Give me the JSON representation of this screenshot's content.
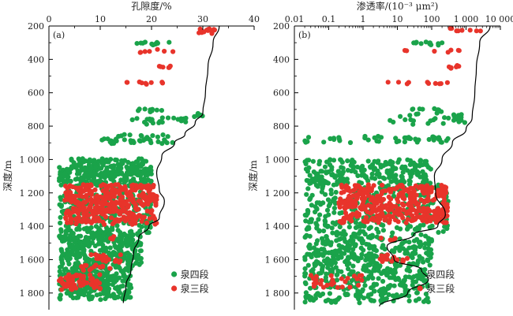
{
  "chart_data": [
    {
      "panel_label": "(a)",
      "type": "scatter",
      "title": "",
      "xlabel": "孔隙度/%",
      "ylabel": "深度/m",
      "x_scale": "linear",
      "xlim": [
        0,
        40
      ],
      "ylim": [
        200,
        1900
      ],
      "x_ticks": [
        0,
        10,
        20,
        30,
        40
      ],
      "x_tick_labels": [
        "0",
        "10",
        "20",
        "30",
        "40"
      ],
      "y_ticks": [
        200,
        400,
        600,
        800,
        1000,
        1200,
        1400,
        1600,
        1800
      ],
      "y_tick_labels": [
        "200",
        "400",
        "600",
        "800",
        "1 000",
        "1 200",
        "1 400",
        "1 600",
        "1 800"
      ],
      "legend_position": "bottom-right",
      "series": [
        {
          "name": "泉四段",
          "color": "#1aa34a",
          "bands": [
            {
              "y": [
                295,
                315
              ],
              "x": [
                16,
                24
              ],
              "n": 12
            },
            {
              "y": [
                695,
                715
              ],
              "x": [
                17,
                22
              ],
              "n": 10
            },
            {
              "y": [
                720,
                745
              ],
              "x": [
                27,
                30
              ],
              "n": 6
            },
            {
              "y": [
                750,
                790
              ],
              "x": [
                15,
                27
              ],
              "n": 22
            },
            {
              "y": [
                850,
                905
              ],
              "x": [
                10,
                25
              ],
              "n": 40
            },
            {
              "y": [
                995,
                1040
              ],
              "x": [
                4,
                19
              ],
              "n": 60
            },
            {
              "y": [
                1040,
                1160
              ],
              "x": [
                2,
                20
              ],
              "n": 230
            },
            {
              "y": [
                1160,
                1440
              ],
              "x": [
                2,
                20
              ],
              "n": 260
            },
            {
              "y": [
                1440,
                1640
              ],
              "x": [
                2,
                18
              ],
              "n": 300
            },
            {
              "y": [
                1640,
                1840
              ],
              "x": [
                2,
                16
              ],
              "n": 260
            }
          ]
        },
        {
          "name": "泉三段",
          "color": "#e8342b",
          "bands": [
            {
              "y": [
                210,
                245
              ],
              "x": [
                29,
                32.5
              ],
              "n": 14
            },
            {
              "y": [
                340,
                360
              ],
              "x": [
                17,
                27
              ],
              "n": 7
            },
            {
              "y": [
                435,
                450
              ],
              "x": [
                21,
                25
              ],
              "n": 6
            },
            {
              "y": [
                535,
                550
              ],
              "x": [
                15,
                25
              ],
              "n": 9
            },
            {
              "y": [
                1150,
                1390
              ],
              "x": [
                3,
                21
              ],
              "n": 360
            },
            {
              "y": [
                1460,
                1480
              ],
              "x": [
                12,
                13
              ],
              "n": 3
            },
            {
              "y": [
                1570,
                1620
              ],
              "x": [
                8,
                14
              ],
              "n": 20
            },
            {
              "y": [
                1630,
                1670
              ],
              "x": [
                6,
                12
              ],
              "n": 14
            },
            {
              "y": [
                1690,
                1780
              ],
              "x": [
                2,
                10
              ],
              "n": 60
            }
          ]
        }
      ],
      "envelope": {
        "points": [
          [
            33.2,
            200
          ],
          [
            32.0,
            300
          ],
          [
            31.0,
            450
          ],
          [
            30.5,
            600
          ],
          [
            30.0,
            720
          ],
          [
            28.5,
            780
          ],
          [
            26.5,
            850
          ],
          [
            24.5,
            900
          ],
          [
            22.0,
            980
          ],
          [
            21.0,
            1080
          ],
          [
            21.5,
            1180
          ],
          [
            22.5,
            1250
          ],
          [
            21.5,
            1350
          ],
          [
            19.5,
            1400
          ],
          [
            17.5,
            1470
          ],
          [
            16.5,
            1560
          ],
          [
            16.0,
            1660
          ],
          [
            15.0,
            1760
          ],
          [
            14.5,
            1860
          ]
        ]
      }
    },
    {
      "panel_label": "(b)",
      "type": "scatter",
      "title": "",
      "xlabel": "渗透率/(10⁻³ μm²)",
      "ylabel": "深度/m",
      "x_scale": "log",
      "xlim": [
        0.01,
        10000
      ],
      "ylim": [
        200,
        1900
      ],
      "x_ticks": [
        0.01,
        0.1,
        1,
        10,
        100,
        1000,
        10000
      ],
      "x_tick_labels": [
        "0.01",
        "0.1",
        "1",
        "10",
        "100",
        "1 000",
        "10 000"
      ],
      "y_ticks": [
        200,
        400,
        600,
        800,
        1000,
        1200,
        1400,
        1600,
        1800
      ],
      "y_tick_labels": [
        "200",
        "400",
        "600",
        "800",
        "1 000",
        "1 200",
        "1 400",
        "1 600",
        "1 800"
      ],
      "legend_position": "bottom-right",
      "series": [
        {
          "name": "泉四段",
          "color": "#1aa34a",
          "bands": [
            {
              "y": [
                295,
                315
              ],
              "x": [
                20,
                300
              ],
              "n": 12
            },
            {
              "y": [
                695,
                715
              ],
              "x": [
                20,
                300
              ],
              "n": 10
            },
            {
              "y": [
                720,
                760
              ],
              "x": [
                10,
                800
              ],
              "n": 14
            },
            {
              "y": [
                760,
                790
              ],
              "x": [
                4,
                1000
              ],
              "n": 14
            },
            {
              "y": [
                860,
                900
              ],
              "x": [
                0.02,
                300
              ],
              "n": 45
            },
            {
              "y": [
                1000,
                1150
              ],
              "x": [
                0.02,
                100
              ],
              "n": 220
            },
            {
              "y": [
                1150,
                1440
              ],
              "x": [
                0.02,
                300
              ],
              "n": 260
            },
            {
              "y": [
                1440,
                1640
              ],
              "x": [
                0.02,
                100
              ],
              "n": 280
            },
            {
              "y": [
                1640,
                1860
              ],
              "x": [
                0.02,
                80
              ],
              "n": 260
            }
          ]
        },
        {
          "name": "泉三段",
          "color": "#e8342b",
          "bands": [
            {
              "y": [
                210,
                230
              ],
              "x": [
                300,
                3000
              ],
              "n": 8
            },
            {
              "y": [
                340,
                360
              ],
              "x": [
                5,
                1000
              ],
              "n": 7
            },
            {
              "y": [
                435,
                455
              ],
              "x": [
                200,
                1000
              ],
              "n": 6
            },
            {
              "y": [
                535,
                550
              ],
              "x": [
                3,
                800
              ],
              "n": 10
            },
            {
              "y": [
                1150,
                1380
              ],
              "x": [
                0.2,
                300
              ],
              "n": 360
            },
            {
              "y": [
                1470,
                1485
              ],
              "x": [
                2,
                10
              ],
              "n": 4
            },
            {
              "y": [
                1570,
                1620
              ],
              "x": [
                3,
                20
              ],
              "n": 18
            },
            {
              "y": [
                1690,
                1770
              ],
              "x": [
                0.03,
                1
              ],
              "n": 30
            }
          ]
        }
      ],
      "envelope": {
        "points": [
          [
            5000,
            200
          ],
          [
            2500,
            300
          ],
          [
            2000,
            450
          ],
          [
            1800,
            600
          ],
          [
            1500,
            750
          ],
          [
            1000,
            820
          ],
          [
            400,
            900
          ],
          [
            200,
            1000
          ],
          [
            120,
            1100
          ],
          [
            130,
            1200
          ],
          [
            250,
            1330
          ],
          [
            150,
            1400
          ],
          [
            30,
            1450
          ],
          [
            5,
            1520
          ],
          [
            8,
            1600
          ],
          [
            50,
            1660
          ],
          [
            80,
            1720
          ],
          [
            20,
            1800
          ],
          [
            3,
            1880
          ]
        ]
      }
    }
  ]
}
